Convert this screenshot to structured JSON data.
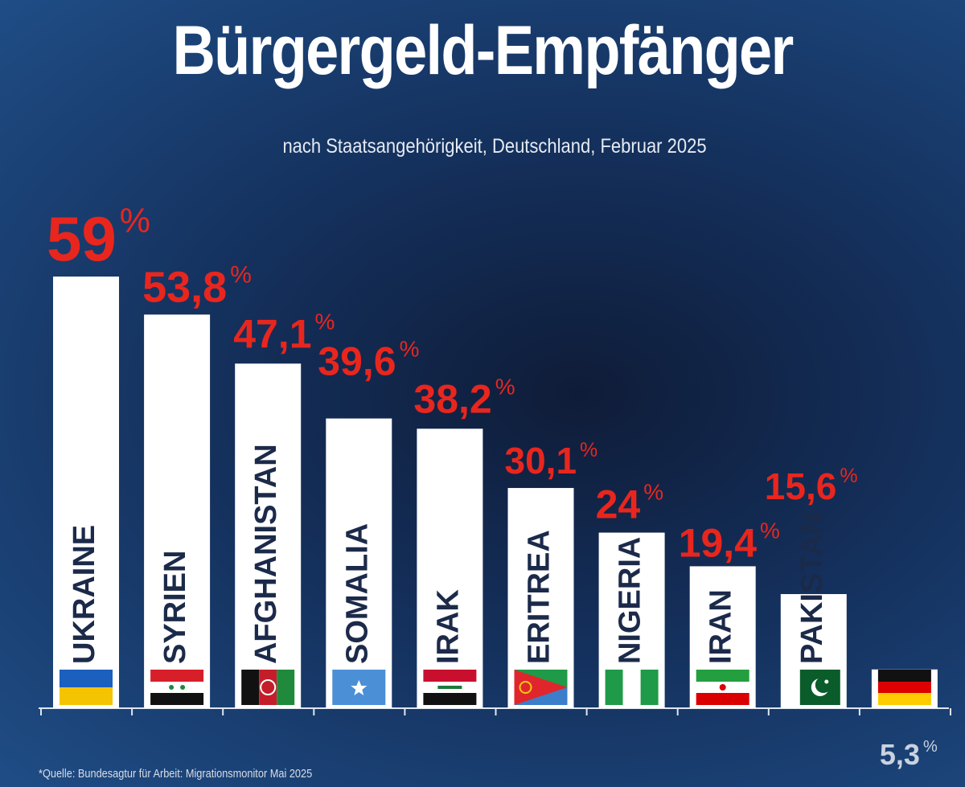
{
  "chart_data": {
    "type": "bar",
    "title": "Bürgergeld-Empfänger",
    "subtitle": "nach Staatsangehörigkeit, Deutschland, Februar 2025",
    "categories": [
      "UKRAINE",
      "SYRIEN",
      "AFGHANISTAN",
      "SOMALIA",
      "IRAK",
      "ERITREA",
      "NIGERIA",
      "IRAN",
      "PAKISTAN",
      ""
    ],
    "values": [
      59,
      53.8,
      47.1,
      39.6,
      38.2,
      30.1,
      24,
      19.4,
      15.6,
      5.3
    ],
    "value_labels": [
      "59",
      "53,8",
      "47,1",
      "39,6",
      "38,2",
      "30,1",
      "24",
      "19,4",
      "15,6",
      "5,3"
    ],
    "unit": "%",
    "flags": [
      "ukraine-flag",
      "syria-flag",
      "afghanistan-flag",
      "somalia-flag",
      "iraq-flag",
      "eritrea-flag",
      "nigeria-flag",
      "iran-flag",
      "pakistan-flag",
      "germany-flag"
    ],
    "ylim": [
      0,
      59
    ],
    "grid": false,
    "colors": {
      "bar": "#ffffff",
      "value_label": "#e8261e",
      "last_value_label": "#c9d3e0",
      "category_label": "#1c2a4a"
    }
  },
  "source": "*Quelle: Bundesagtur für Arbeit: Migrationsmonitor Mai 2025"
}
